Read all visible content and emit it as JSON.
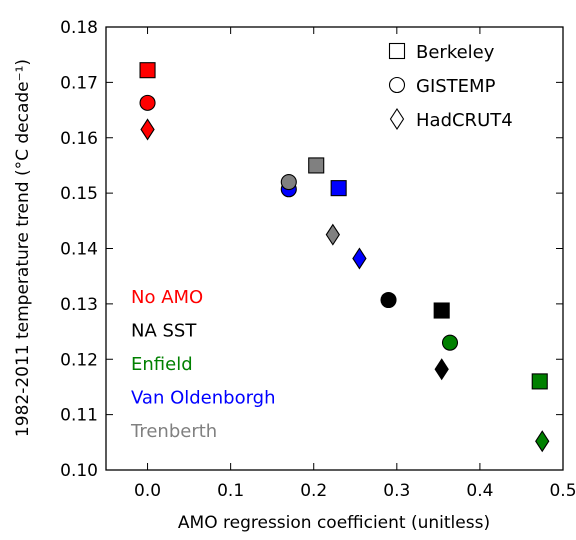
{
  "chart_data": {
    "type": "scatter",
    "xlabel": "AMO regression coefficient (unitless)",
    "ylabel": "1982-2011 temperature trend (°C decade⁻¹)",
    "xlim": [
      -0.05,
      0.5
    ],
    "ylim": [
      0.1,
      0.18
    ],
    "xticks": [
      "0.0",
      "0.1",
      "0.2",
      "0.3",
      "0.4",
      "0.5"
    ],
    "yticks": [
      "0.10",
      "0.11",
      "0.12",
      "0.13",
      "0.14",
      "0.15",
      "0.16",
      "0.17",
      "0.18"
    ],
    "grid": false,
    "marker_legend": {
      "position": "top-right",
      "entries": [
        {
          "name": "Berkeley",
          "marker": "square"
        },
        {
          "name": "GISTEMP",
          "marker": "circle"
        },
        {
          "name": "HadCRUT4",
          "marker": "diamond"
        }
      ]
    },
    "color_legend": {
      "position": "lower-left",
      "entries": [
        {
          "name": "No AMO",
          "color": "#ff0000"
        },
        {
          "name": "NA SST",
          "color": "#000000"
        },
        {
          "name": "Enfield",
          "color": "#008000"
        },
        {
          "name": "Van Oldenborgh",
          "color": "#0000ff"
        },
        {
          "name": "Trenberth",
          "color": "#808080"
        }
      ]
    },
    "series": [
      {
        "name": "No AMO",
        "color": "#ff0000",
        "points": [
          {
            "dataset": "Berkeley",
            "x": 0.0,
            "y": 0.1722
          },
          {
            "dataset": "GISTEMP",
            "x": 0.0,
            "y": 0.1663
          },
          {
            "dataset": "HadCRUT4",
            "x": 0.0,
            "y": 0.1615
          }
        ]
      },
      {
        "name": "NA SST",
        "color": "#000000",
        "points": [
          {
            "dataset": "Berkeley",
            "x": 0.354,
            "y": 0.1288
          },
          {
            "dataset": "GISTEMP",
            "x": 0.29,
            "y": 0.1307
          },
          {
            "dataset": "HadCRUT4",
            "x": 0.354,
            "y": 0.1182
          }
        ]
      },
      {
        "name": "Enfield",
        "color": "#008000",
        "points": [
          {
            "dataset": "Berkeley",
            "x": 0.472,
            "y": 0.116
          },
          {
            "dataset": "GISTEMP",
            "x": 0.364,
            "y": 0.123
          },
          {
            "dataset": "HadCRUT4",
            "x": 0.475,
            "y": 0.1052
          }
        ]
      },
      {
        "name": "Van Oldenborgh",
        "color": "#0000ff",
        "points": [
          {
            "dataset": "Berkeley",
            "x": 0.23,
            "y": 0.1509
          },
          {
            "dataset": "GISTEMP",
            "x": 0.17,
            "y": 0.1507
          },
          {
            "dataset": "HadCRUT4",
            "x": 0.255,
            "y": 0.1382
          }
        ]
      },
      {
        "name": "Trenberth",
        "color": "#808080",
        "points": [
          {
            "dataset": "Berkeley",
            "x": 0.203,
            "y": 0.155
          },
          {
            "dataset": "GISTEMP",
            "x": 0.17,
            "y": 0.152
          },
          {
            "dataset": "HadCRUT4",
            "x": 0.223,
            "y": 0.1425
          }
        ]
      }
    ]
  }
}
